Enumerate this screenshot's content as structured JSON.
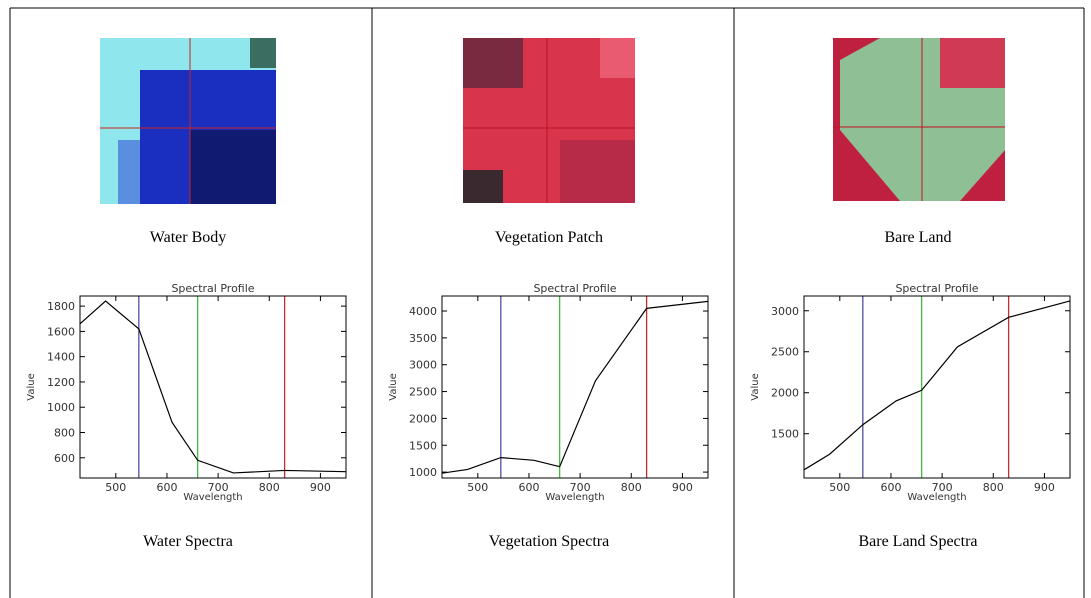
{
  "chart_data": [
    {
      "type": "line",
      "image_label": "Water Body",
      "caption": "Water Spectra",
      "title": "Spectral Profile",
      "xlabel": "Wavelength",
      "ylabel": "Value",
      "x": [
        430,
        480,
        545,
        610,
        660,
        730,
        830,
        950
      ],
      "series": [
        {
          "color": "#000000",
          "values": [
            1660,
            1840,
            1620,
            880,
            580,
            480,
            500,
            490
          ]
        }
      ],
      "vlines": [
        {
          "x": 545,
          "color": "#5050a0"
        },
        {
          "x": 660,
          "color": "#40c040"
        },
        {
          "x": 830,
          "color": "#c03030"
        }
      ],
      "xlim": [
        430,
        950
      ],
      "xticks": [
        500,
        600,
        700,
        800,
        900
      ],
      "ylim": [
        440,
        1880
      ],
      "yticks": [
        600,
        800,
        1000,
        1200,
        1400,
        1600,
        1800
      ]
    },
    {
      "type": "line",
      "image_label": "Vegetation Patch",
      "caption": "Vegetation Spectra",
      "title": "Spectral Profile",
      "xlabel": "Wavelength",
      "ylabel": "Value",
      "x": [
        430,
        480,
        545,
        610,
        660,
        730,
        830,
        950
      ],
      "series": [
        {
          "color": "#000000",
          "values": [
            980,
            1050,
            1270,
            1220,
            1100,
            2700,
            4050,
            4180
          ]
        }
      ],
      "vlines": [
        {
          "x": 545,
          "color": "#5050a0"
        },
        {
          "x": 660,
          "color": "#40c040"
        },
        {
          "x": 830,
          "color": "#c03030"
        }
      ],
      "xlim": [
        430,
        950
      ],
      "xticks": [
        500,
        600,
        700,
        800,
        900
      ],
      "ylim": [
        890,
        4280
      ],
      "yticks": [
        1000,
        1500,
        2000,
        2500,
        3000,
        3500,
        4000
      ]
    },
    {
      "type": "line",
      "image_label": "Bare Land",
      "caption": "Bare Land Spectra",
      "title": "Spectral Profile",
      "xlabel": "Wavelength",
      "ylabel": "Value",
      "x": [
        430,
        480,
        545,
        610,
        660,
        730,
        830,
        950
      ],
      "series": [
        {
          "color": "#000000",
          "values": [
            1060,
            1250,
            1610,
            1900,
            2030,
            2560,
            2920,
            3120
          ]
        }
      ],
      "vlines": [
        {
          "x": 545,
          "color": "#5050a0"
        },
        {
          "x": 660,
          "color": "#40c040"
        },
        {
          "x": 830,
          "color": "#c03030"
        }
      ],
      "xlim": [
        430,
        950
      ],
      "xticks": [
        500,
        600,
        700,
        800,
        900
      ],
      "ylim": [
        960,
        3180
      ],
      "yticks": [
        1500,
        2000,
        2500,
        3000
      ]
    }
  ]
}
